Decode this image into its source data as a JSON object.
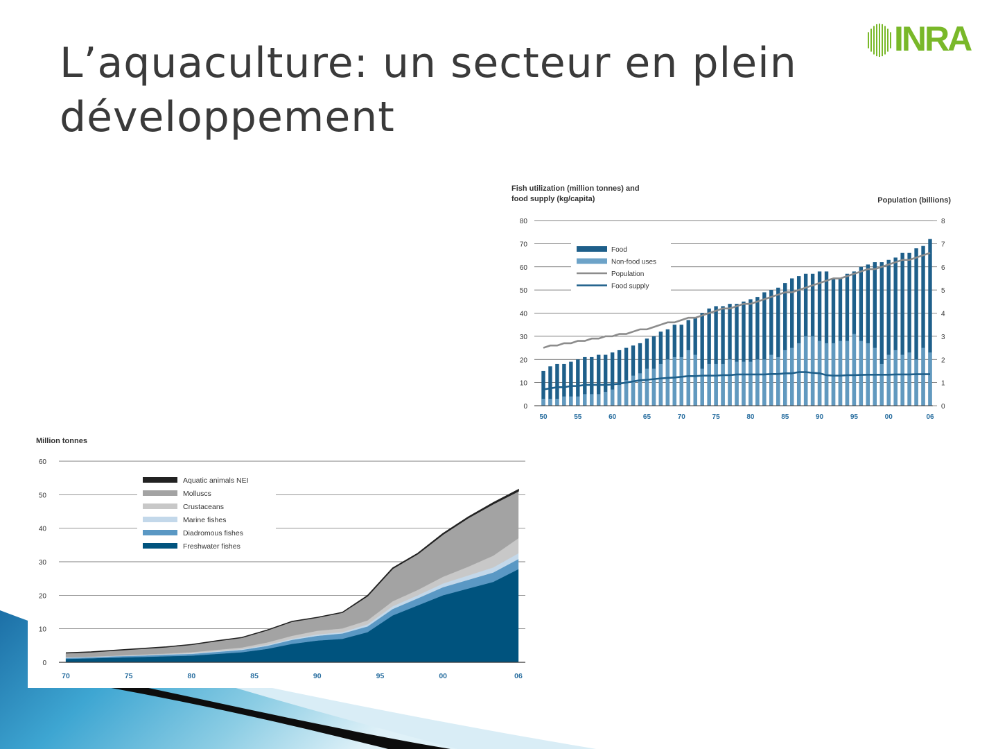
{
  "slide": {
    "title_line1": "L’aquaculture: un secteur en plein",
    "title_line2": "développement",
    "logo_text": "INRA",
    "logo_color": "#79b829"
  },
  "chart_data": [
    {
      "id": "fish-utilization",
      "type": "bar",
      "title": "",
      "ylabel_left_line1": "Fish utilization (million tonnes) and",
      "ylabel_left_line2": "food supply (kg/capita)",
      "ylabel_right": "Population (billions)",
      "ylim_left": [
        0,
        80
      ],
      "ylim_right": [
        0,
        8
      ],
      "yticks_left": [
        0,
        10,
        20,
        30,
        40,
        50,
        60,
        70,
        80
      ],
      "yticks_right": [
        0,
        1,
        2,
        3,
        4,
        5,
        6,
        7,
        8
      ],
      "x_tick_labels": [
        {
          "year": 1950,
          "label": "50"
        },
        {
          "year": 1955,
          "label": "55"
        },
        {
          "year": 1960,
          "label": "60"
        },
        {
          "year": 1965,
          "label": "65"
        },
        {
          "year": 1970,
          "label": "70"
        },
        {
          "year": 1975,
          "label": "75"
        },
        {
          "year": 1980,
          "label": "80"
        },
        {
          "year": 1985,
          "label": "85"
        },
        {
          "year": 1990,
          "label": "90"
        },
        {
          "year": 1995,
          "label": "95"
        },
        {
          "year": 2000,
          "label": "00"
        },
        {
          "year": 2006,
          "label": "06"
        }
      ],
      "grid": true,
      "legend_position": "top-left",
      "colors": {
        "food": "#1e5f8a",
        "nonfood": "#6da3c8",
        "population": "#8c8c8c",
        "food_supply": "#1e5f8a",
        "tick": "#2a6fa0"
      },
      "x": [
        1950,
        1951,
        1952,
        1953,
        1954,
        1955,
        1956,
        1957,
        1958,
        1959,
        1960,
        1961,
        1962,
        1963,
        1964,
        1965,
        1966,
        1967,
        1968,
        1969,
        1970,
        1971,
        1972,
        1973,
        1974,
        1975,
        1976,
        1977,
        1978,
        1979,
        1980,
        1981,
        1982,
        1983,
        1984,
        1985,
        1986,
        1987,
        1988,
        1989,
        1990,
        1991,
        1992,
        1993,
        1994,
        1995,
        1996,
        1997,
        1998,
        1999,
        2000,
        2001,
        2002,
        2003,
        2004,
        2005,
        2006
      ],
      "series": [
        {
          "name": "Food",
          "axis": "left",
          "values": [
            15,
            17,
            18,
            18,
            19,
            20,
            21,
            21,
            22,
            22,
            23,
            24,
            25,
            26,
            27,
            29,
            30,
            32,
            33,
            35,
            35,
            37,
            38,
            40,
            42,
            43,
            43,
            44,
            44,
            45,
            46,
            47,
            49,
            50,
            51,
            53,
            55,
            56,
            57,
            57,
            58,
            58,
            55,
            55,
            57,
            58,
            60,
            61,
            62,
            62,
            63,
            64,
            66,
            66,
            68,
            69,
            72
          ]
        },
        {
          "name": "Non-food uses",
          "axis": "left",
          "values": [
            3,
            3,
            3,
            4,
            4,
            4,
            5,
            5,
            5,
            6,
            7,
            9,
            11,
            13,
            14,
            16,
            16,
            18,
            20,
            21,
            21,
            24,
            22,
            16,
            18,
            18,
            18,
            20,
            19,
            19,
            19,
            20,
            20,
            22,
            21,
            24,
            25,
            27,
            30,
            30,
            28,
            27,
            27,
            28,
            28,
            31,
            28,
            27,
            25,
            18,
            22,
            24,
            22,
            23,
            20,
            25,
            23
          ]
        },
        {
          "name": "Population",
          "axis": "right",
          "values": [
            2.5,
            2.6,
            2.6,
            2.7,
            2.7,
            2.8,
            2.8,
            2.9,
            2.9,
            3.0,
            3.0,
            3.1,
            3.1,
            3.2,
            3.3,
            3.3,
            3.4,
            3.5,
            3.6,
            3.6,
            3.7,
            3.8,
            3.8,
            3.9,
            4.0,
            4.1,
            4.2,
            4.2,
            4.3,
            4.4,
            4.4,
            4.5,
            4.6,
            4.7,
            4.8,
            4.9,
            4.9,
            5.0,
            5.1,
            5.2,
            5.3,
            5.4,
            5.5,
            5.5,
            5.6,
            5.7,
            5.8,
            5.9,
            5.9,
            6.0,
            6.1,
            6.2,
            6.3,
            6.3,
            6.4,
            6.5,
            6.6
          ]
        },
        {
          "name": "Food supply",
          "axis": "left",
          "values": [
            7.0,
            7.5,
            8.0,
            8.0,
            8.5,
            8.5,
            9.0,
            9.0,
            9.0,
            9.0,
            9.2,
            9.5,
            10.0,
            10.5,
            11.0,
            11.2,
            11.5,
            11.8,
            12.0,
            12.2,
            12.5,
            12.8,
            12.8,
            13.0,
            13.0,
            13.0,
            13.2,
            13.2,
            13.5,
            13.5,
            13.5,
            13.5,
            13.5,
            13.7,
            13.7,
            14.0,
            14.0,
            14.5,
            14.5,
            14.2,
            14.0,
            13.2,
            13.0,
            13.0,
            13.2,
            13.2,
            13.3,
            13.4,
            13.4,
            13.4,
            13.4,
            13.5,
            13.5,
            13.5,
            13.6,
            13.6,
            13.6
          ]
        }
      ]
    },
    {
      "id": "aquaculture-production",
      "type": "area",
      "title": "",
      "ylabel": "Million tonnes",
      "ylim": [
        0,
        60
      ],
      "yticks": [
        0,
        10,
        20,
        30,
        40,
        50,
        60
      ],
      "x_tick_labels": [
        {
          "year": 1970,
          "label": "70"
        },
        {
          "year": 1975,
          "label": "75"
        },
        {
          "year": 1980,
          "label": "80"
        },
        {
          "year": 1985,
          "label": "85"
        },
        {
          "year": 1990,
          "label": "90"
        },
        {
          "year": 1995,
          "label": "95"
        },
        {
          "year": 2000,
          "label": "00"
        },
        {
          "year": 2006,
          "label": "06"
        }
      ],
      "grid": true,
      "stacked": true,
      "legend_position": "top-left",
      "x": [
        1970,
        1972,
        1974,
        1976,
        1978,
        1980,
        1982,
        1984,
        1986,
        1988,
        1990,
        1992,
        1994,
        1996,
        1998,
        2000,
        2002,
        2004,
        2006
      ],
      "series": [
        {
          "name": "Freshwater fishes",
          "color": "#00537e",
          "values": [
            1.0,
            1.2,
            1.4,
            1.6,
            1.8,
            2.0,
            2.5,
            3.0,
            4.0,
            5.5,
            6.5,
            7.0,
            9.0,
            14.0,
            17.0,
            20.0,
            22.0,
            24.0,
            27.8
          ]
        },
        {
          "name": "Diadromous fishes",
          "color": "#5a98c4",
          "values": [
            0.3,
            0.3,
            0.4,
            0.4,
            0.5,
            0.5,
            0.6,
            0.7,
            0.9,
            1.2,
            1.4,
            1.6,
            1.7,
            1.9,
            2.1,
            2.4,
            2.6,
            2.8,
            3.0
          ]
        },
        {
          "name": "Marine fishes",
          "color": "#c3d8ea",
          "values": [
            0.1,
            0.1,
            0.1,
            0.1,
            0.1,
            0.2,
            0.2,
            0.2,
            0.3,
            0.3,
            0.4,
            0.4,
            0.6,
            0.8,
            0.9,
            1.1,
            1.3,
            1.5,
            1.7
          ]
        },
        {
          "name": "Crustaceans",
          "color": "#c8c8c8",
          "values": [
            0.1,
            0.1,
            0.1,
            0.2,
            0.2,
            0.3,
            0.4,
            0.5,
            0.7,
            0.9,
            1.1,
            1.1,
            1.2,
            1.5,
            1.6,
            2.0,
            2.6,
            3.5,
            4.5
          ]
        },
        {
          "name": "Molluscs",
          "color": "#a3a3a3",
          "values": [
            1.3,
            1.4,
            1.6,
            1.8,
            2.0,
            2.3,
            2.7,
            3.0,
            3.7,
            4.3,
            4.0,
            4.8,
            7.3,
            9.8,
            10.8,
            12.7,
            14.6,
            15.5,
            14.1
          ]
        },
        {
          "name": "Aquatic animals NEI",
          "color": "#222222",
          "values": [
            0.0,
            0.0,
            0.0,
            0.0,
            0.0,
            0.0,
            0.0,
            0.0,
            0.0,
            0.0,
            0.0,
            0.0,
            0.1,
            0.1,
            0.1,
            0.2,
            0.2,
            0.3,
            0.4
          ]
        }
      ]
    }
  ]
}
